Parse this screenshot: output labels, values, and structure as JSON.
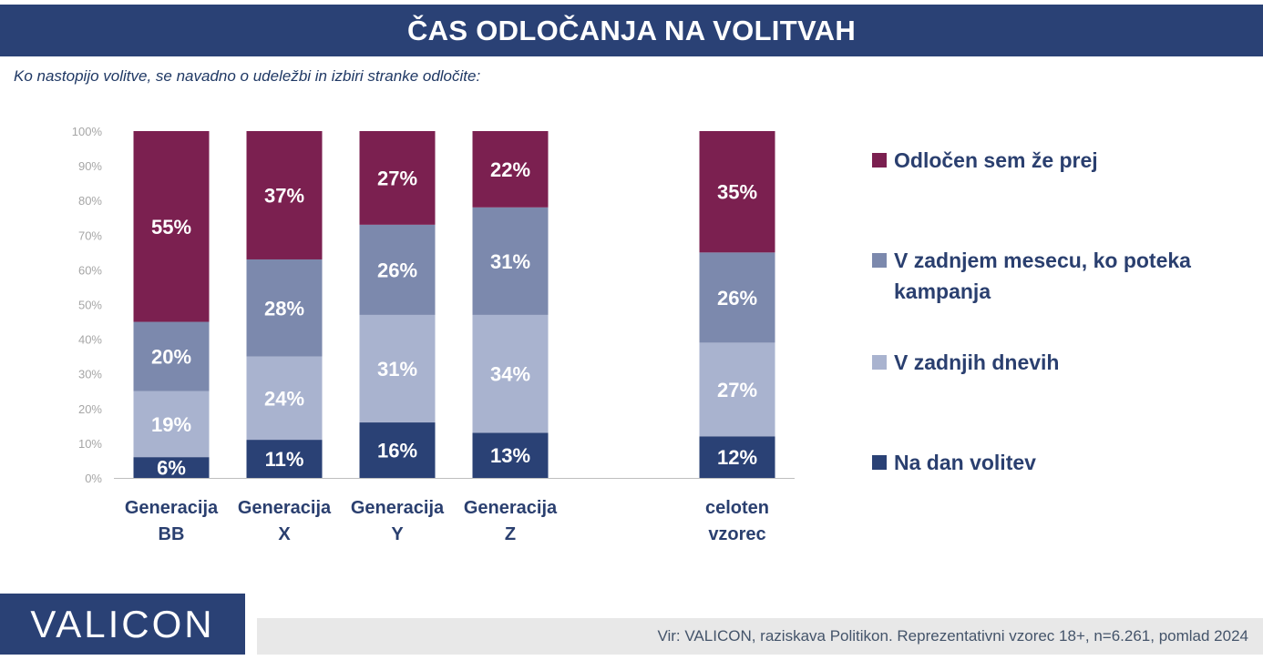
{
  "header": {
    "title": "ČAS ODLOČANJA NA VOLITVAH",
    "subtitle": "Ko nastopijo volitve, se navadno o udeležbi in izbiri stranke odločite:"
  },
  "footer": {
    "logo": "VALICON",
    "source": "Vir: VALICON, raziskava Politikon. Reprezentativni vzorec 18+, n=6.261, pomlad 2024"
  },
  "colors": {
    "title_bg": "#2a4175",
    "text_dark": "#2a3f6f",
    "axis_text": "#a6a6a6"
  },
  "chart_data": {
    "type": "bar",
    "stacked": true,
    "ylim": [
      0,
      100
    ],
    "yticks": [
      "0%",
      "10%",
      "20%",
      "30%",
      "40%",
      "50%",
      "60%",
      "70%",
      "80%",
      "90%",
      "100%"
    ],
    "categories": [
      [
        "Generacija",
        "BB"
      ],
      [
        "Generacija",
        "X"
      ],
      [
        "Generacija",
        "Y"
      ],
      [
        "Generacija",
        "Z"
      ],
      [
        "celoten",
        "vzorec"
      ]
    ],
    "series": [
      {
        "name": "Na dan volitev",
        "color": "#2a4175",
        "values": [
          6,
          11,
          16,
          13,
          12
        ]
      },
      {
        "name": "V zadnjih dnevih",
        "color": "#a9b3cf",
        "values": [
          19,
          24,
          31,
          34,
          27
        ]
      },
      {
        "name": "V zadnjem mesecu, ko poteka kampanja",
        "color": "#7c89ad",
        "values": [
          20,
          28,
          26,
          31,
          26
        ]
      },
      {
        "name": "Odločen sem že prej",
        "color": "#7b2050",
        "values": [
          55,
          37,
          27,
          22,
          35
        ]
      }
    ],
    "legend": {
      "placement": "right",
      "order": [
        3,
        2,
        1,
        0
      ],
      "lines": [
        [
          "Odločen sem že prej"
        ],
        [
          "V zadnjem mesecu, ko poteka",
          "kampanja"
        ],
        [
          "V zadnjih dnevih"
        ],
        [
          "Na dan volitev"
        ]
      ]
    }
  }
}
